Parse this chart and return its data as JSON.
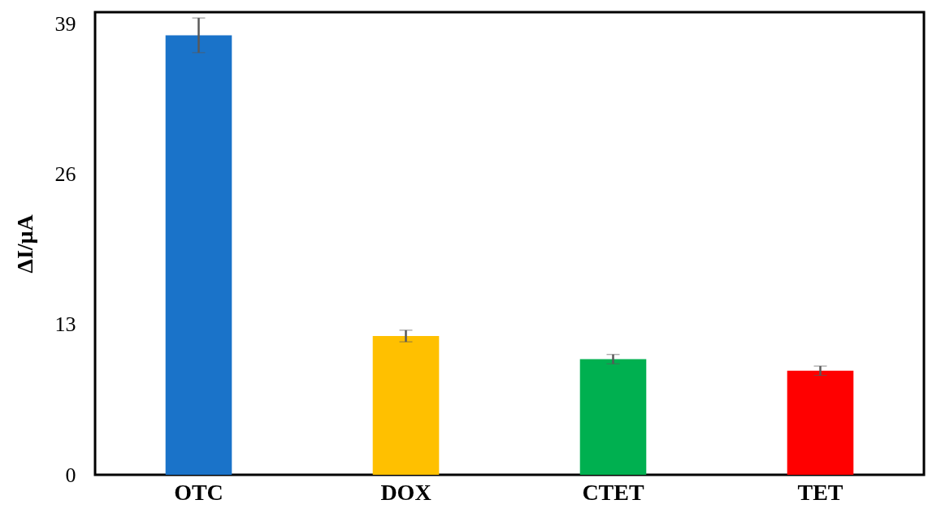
{
  "chart_data": {
    "type": "bar",
    "ylabel": "ΔI/μA",
    "categories": [
      "OTC",
      "DOX",
      "CTET",
      "TET"
    ],
    "values": [
      38,
      12,
      10,
      9
    ],
    "colors": [
      "#1a73c9",
      "#ffc000",
      "#00b050",
      "#ff0000"
    ],
    "errors": [
      1.5,
      0.5,
      0.4,
      0.4
    ],
    "ylim": [
      0,
      40
    ],
    "yticks": [
      0,
      13,
      26,
      39
    ],
    "grid": false
  }
}
